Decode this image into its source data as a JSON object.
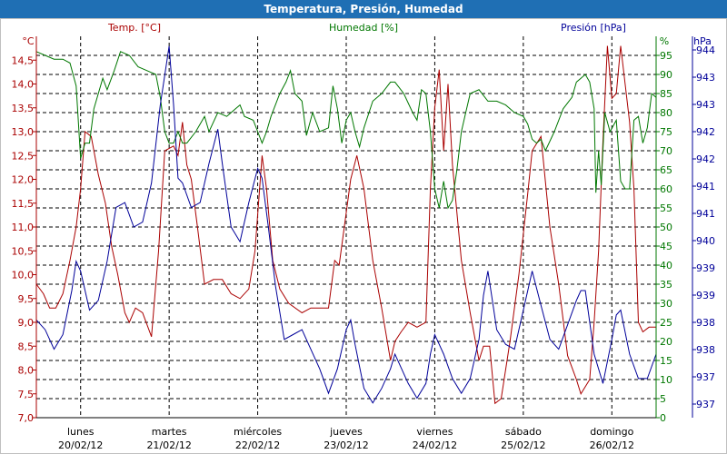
{
  "window": {
    "title": "Temperatura, Presión, Humedad"
  },
  "chart_data": {
    "type": "line",
    "title": "Temperatura, Presión, Humedad",
    "x": {
      "labels": [
        {
          "day": "lunes",
          "date": "20/02/12"
        },
        {
          "day": "martes",
          "date": "21/02/12"
        },
        {
          "day": "miércoles",
          "date": "22/02/12"
        },
        {
          "day": "jueves",
          "date": "23/02/12"
        },
        {
          "day": "viernes",
          "date": "24/02/12"
        },
        {
          "day": "sábado",
          "date": "25/02/12"
        },
        {
          "day": "domingo",
          "date": "26/02/12"
        }
      ],
      "range": [
        0,
        7
      ]
    },
    "axes": {
      "temp": {
        "label": "Temp. [°C]",
        "unit": "°C",
        "min": 7.0,
        "max": 15.0,
        "ticks": [
          "7,0",
          "7,5",
          "8,0",
          "8,5",
          "9,0",
          "9,5",
          "10,0",
          "10,5",
          "11,0",
          "11,5",
          "12,0",
          "12,5",
          "13,0",
          "13,5",
          "14,0",
          "14,5"
        ],
        "color": "#aa0000"
      },
      "hum": {
        "label": "Humedad [%]",
        "unit": "%",
        "min": 0,
        "max": 100,
        "ticks": [
          "0",
          "5",
          "10",
          "15",
          "20",
          "25",
          "30",
          "35",
          "40",
          "45",
          "50",
          "55",
          "60",
          "65",
          "70",
          "75",
          "80",
          "85",
          "90",
          "95"
        ],
        "color": "#007700"
      },
      "pres": {
        "label": "Presión [hPa]",
        "unit": "hPa",
        "min": 936.6,
        "max": 944.4,
        "ticks": [
          "937",
          "937",
          "938",
          "938",
          "939",
          "939",
          "940",
          "941",
          "941",
          "942",
          "942",
          "943",
          "943",
          "944"
        ],
        "color": "#000099"
      }
    },
    "series": [
      {
        "name": "Temp. [°C]",
        "axis": "temp",
        "color": "#aa0000",
        "points": [
          [
            0.0,
            9.8
          ],
          [
            0.08,
            9.6
          ],
          [
            0.15,
            9.3
          ],
          [
            0.22,
            9.3
          ],
          [
            0.3,
            9.6
          ],
          [
            0.38,
            10.3
          ],
          [
            0.45,
            11.0
          ],
          [
            0.5,
            11.8
          ],
          [
            0.55,
            13.0
          ],
          [
            0.62,
            12.9
          ],
          [
            0.7,
            12.1
          ],
          [
            0.78,
            11.5
          ],
          [
            0.85,
            10.6
          ],
          [
            0.92,
            10.0
          ],
          [
            1.0,
            9.2
          ],
          [
            1.05,
            9.0
          ],
          [
            1.12,
            9.3
          ],
          [
            1.2,
            9.2
          ],
          [
            1.3,
            8.7
          ],
          [
            1.38,
            10.5
          ],
          [
            1.45,
            12.6
          ],
          [
            1.55,
            12.7
          ],
          [
            1.6,
            12.5
          ],
          [
            1.65,
            13.2
          ],
          [
            1.7,
            12.3
          ],
          [
            1.75,
            12.0
          ],
          [
            1.82,
            11.0
          ],
          [
            1.9,
            9.8
          ],
          [
            2.0,
            9.9
          ],
          [
            2.1,
            9.9
          ],
          [
            2.2,
            9.6
          ],
          [
            2.3,
            9.5
          ],
          [
            2.4,
            9.7
          ],
          [
            2.47,
            10.5
          ],
          [
            2.55,
            12.5
          ],
          [
            2.6,
            11.8
          ],
          [
            2.67,
            10.3
          ],
          [
            2.75,
            9.7
          ],
          [
            2.85,
            9.4
          ],
          [
            3.0,
            9.2
          ],
          [
            3.1,
            9.3
          ],
          [
            3.2,
            9.3
          ],
          [
            3.3,
            9.3
          ],
          [
            3.37,
            10.3
          ],
          [
            3.42,
            10.2
          ],
          [
            3.5,
            11.3
          ],
          [
            3.55,
            12.0
          ],
          [
            3.62,
            12.5
          ],
          [
            3.7,
            11.8
          ],
          [
            3.8,
            10.3
          ],
          [
            3.9,
            9.3
          ],
          [
            4.0,
            8.2
          ],
          [
            4.05,
            8.6
          ],
          [
            4.12,
            8.8
          ],
          [
            4.2,
            9.0
          ],
          [
            4.3,
            8.9
          ],
          [
            4.4,
            9.0
          ],
          [
            4.45,
            11.8
          ],
          [
            4.5,
            13.5
          ],
          [
            4.55,
            14.3
          ],
          [
            4.6,
            12.6
          ],
          [
            4.65,
            14.0
          ],
          [
            4.7,
            12.3
          ],
          [
            4.8,
            10.3
          ],
          [
            4.9,
            9.2
          ],
          [
            5.0,
            8.2
          ],
          [
            5.05,
            8.5
          ],
          [
            5.12,
            8.5
          ],
          [
            5.18,
            7.3
          ],
          [
            5.25,
            7.4
          ],
          [
            5.35,
            8.6
          ],
          [
            5.45,
            10.0
          ],
          [
            5.55,
            11.7
          ],
          [
            5.6,
            12.6
          ],
          [
            5.7,
            12.9
          ],
          [
            5.8,
            11.0
          ],
          [
            5.9,
            9.8
          ],
          [
            6.0,
            8.3
          ],
          [
            6.1,
            7.8
          ],
          [
            6.15,
            7.5
          ],
          [
            6.25,
            7.8
          ],
          [
            6.3,
            9.0
          ],
          [
            6.35,
            10.5
          ],
          [
            6.4,
            12.8
          ],
          [
            6.45,
            14.8
          ],
          [
            6.5,
            13.7
          ],
          [
            6.55,
            13.8
          ],
          [
            6.6,
            14.8
          ],
          [
            6.65,
            14.0
          ],
          [
            6.7,
            13.2
          ],
          [
            6.75,
            11.8
          ],
          [
            6.8,
            9.0
          ],
          [
            6.85,
            8.8
          ],
          [
            6.92,
            8.9
          ],
          [
            7.0,
            8.9
          ]
        ]
      },
      {
        "name": "Humedad [%]",
        "axis": "hum",
        "color": "#007700",
        "points": [
          [
            0.0,
            96
          ],
          [
            0.1,
            95
          ],
          [
            0.2,
            94
          ],
          [
            0.3,
            94
          ],
          [
            0.38,
            93
          ],
          [
            0.45,
            87
          ],
          [
            0.5,
            68
          ],
          [
            0.55,
            72
          ],
          [
            0.6,
            72
          ],
          [
            0.65,
            81
          ],
          [
            0.7,
            85
          ],
          [
            0.75,
            89
          ],
          [
            0.8,
            86
          ],
          [
            0.88,
            91
          ],
          [
            0.95,
            96
          ],
          [
            1.05,
            95
          ],
          [
            1.15,
            92
          ],
          [
            1.25,
            91
          ],
          [
            1.35,
            90
          ],
          [
            1.4,
            84
          ],
          [
            1.45,
            75
          ],
          [
            1.5,
            72
          ],
          [
            1.55,
            72
          ],
          [
            1.6,
            75
          ],
          [
            1.65,
            72
          ],
          [
            1.7,
            72
          ],
          [
            1.8,
            75
          ],
          [
            1.9,
            79
          ],
          [
            1.95,
            75
          ],
          [
            2.05,
            80
          ],
          [
            2.15,
            79
          ],
          [
            2.25,
            81
          ],
          [
            2.3,
            82
          ],
          [
            2.35,
            79
          ],
          [
            2.45,
            78
          ],
          [
            2.5,
            75
          ],
          [
            2.55,
            72
          ],
          [
            2.6,
            75
          ],
          [
            2.65,
            79
          ],
          [
            2.75,
            85
          ],
          [
            2.82,
            88
          ],
          [
            2.87,
            91
          ],
          [
            2.92,
            85
          ],
          [
            3.0,
            83
          ],
          [
            3.05,
            74
          ],
          [
            3.12,
            80
          ],
          [
            3.2,
            75
          ],
          [
            3.3,
            76
          ],
          [
            3.35,
            87
          ],
          [
            3.4,
            81
          ],
          [
            3.45,
            72
          ],
          [
            3.5,
            78
          ],
          [
            3.55,
            80
          ],
          [
            3.6,
            75
          ],
          [
            3.65,
            71
          ],
          [
            3.7,
            76
          ],
          [
            3.8,
            83
          ],
          [
            3.9,
            85
          ],
          [
            4.0,
            88
          ],
          [
            4.05,
            88
          ],
          [
            4.15,
            85
          ],
          [
            4.25,
            80
          ],
          [
            4.3,
            78
          ],
          [
            4.35,
            86
          ],
          [
            4.4,
            85
          ],
          [
            4.45,
            75
          ],
          [
            4.5,
            60
          ],
          [
            4.55,
            55
          ],
          [
            4.6,
            62
          ],
          [
            4.65,
            55
          ],
          [
            4.7,
            57
          ],
          [
            4.75,
            65
          ],
          [
            4.8,
            75
          ],
          [
            4.85,
            80
          ],
          [
            4.9,
            85
          ],
          [
            5.0,
            86
          ],
          [
            5.1,
            83
          ],
          [
            5.2,
            83
          ],
          [
            5.3,
            82
          ],
          [
            5.4,
            80
          ],
          [
            5.5,
            79
          ],
          [
            5.55,
            77
          ],
          [
            5.6,
            73
          ],
          [
            5.65,
            72
          ],
          [
            5.7,
            73
          ],
          [
            5.75,
            70
          ],
          [
            5.85,
            75
          ],
          [
            5.95,
            81
          ],
          [
            6.05,
            84
          ],
          [
            6.1,
            88
          ],
          [
            6.15,
            89
          ],
          [
            6.2,
            90
          ],
          [
            6.25,
            88
          ],
          [
            6.3,
            81
          ],
          [
            6.32,
            59
          ],
          [
            6.35,
            70
          ],
          [
            6.38,
            61
          ],
          [
            6.42,
            80
          ],
          [
            6.48,
            75
          ],
          [
            6.55,
            78
          ],
          [
            6.6,
            62
          ],
          [
            6.65,
            60
          ],
          [
            6.7,
            60
          ],
          [
            6.75,
            78
          ],
          [
            6.8,
            79
          ],
          [
            6.85,
            72
          ],
          [
            6.9,
            76
          ],
          [
            6.95,
            85
          ],
          [
            7.0,
            84
          ]
        ]
      },
      {
        "name": "Presión [hPa]",
        "axis": "pres",
        "color": "#000099",
        "points": [
          [
            0.0,
            938.6
          ],
          [
            0.1,
            938.4
          ],
          [
            0.2,
            938.0
          ],
          [
            0.3,
            938.3
          ],
          [
            0.4,
            939.2
          ],
          [
            0.45,
            939.8
          ],
          [
            0.5,
            939.6
          ],
          [
            0.6,
            938.8
          ],
          [
            0.7,
            939.0
          ],
          [
            0.8,
            939.8
          ],
          [
            0.9,
            940.9
          ],
          [
            1.0,
            941.0
          ],
          [
            1.1,
            940.5
          ],
          [
            1.2,
            940.6
          ],
          [
            1.3,
            941.4
          ],
          [
            1.4,
            943.0
          ],
          [
            1.5,
            944.2
          ],
          [
            1.55,
            943.0
          ],
          [
            1.6,
            941.5
          ],
          [
            1.65,
            941.4
          ],
          [
            1.75,
            940.9
          ],
          [
            1.85,
            941.0
          ],
          [
            1.95,
            941.8
          ],
          [
            2.05,
            942.5
          ],
          [
            2.1,
            941.8
          ],
          [
            2.2,
            940.5
          ],
          [
            2.3,
            940.2
          ],
          [
            2.4,
            941.0
          ],
          [
            2.5,
            941.7
          ],
          [
            2.55,
            941.5
          ],
          [
            2.62,
            940.5
          ],
          [
            2.7,
            939.3
          ],
          [
            2.8,
            938.2
          ],
          [
            2.9,
            938.3
          ],
          [
            3.0,
            938.4
          ],
          [
            3.1,
            938.0
          ],
          [
            3.2,
            937.6
          ],
          [
            3.3,
            937.1
          ],
          [
            3.4,
            937.6
          ],
          [
            3.5,
            938.4
          ],
          [
            3.55,
            938.6
          ],
          [
            3.6,
            938.1
          ],
          [
            3.7,
            937.2
          ],
          [
            3.8,
            936.9
          ],
          [
            3.9,
            937.2
          ],
          [
            4.0,
            937.6
          ],
          [
            4.05,
            937.9
          ],
          [
            4.1,
            937.7
          ],
          [
            4.2,
            937.3
          ],
          [
            4.3,
            937.0
          ],
          [
            4.4,
            937.3
          ],
          [
            4.45,
            937.9
          ],
          [
            4.5,
            938.3
          ],
          [
            4.55,
            938.1
          ],
          [
            4.6,
            937.9
          ],
          [
            4.7,
            937.4
          ],
          [
            4.8,
            937.1
          ],
          [
            4.9,
            937.4
          ],
          [
            5.0,
            938.2
          ],
          [
            5.05,
            939.1
          ],
          [
            5.1,
            939.6
          ],
          [
            5.15,
            939.0
          ],
          [
            5.2,
            938.4
          ],
          [
            5.3,
            938.1
          ],
          [
            5.4,
            938.0
          ],
          [
            5.5,
            938.8
          ],
          [
            5.6,
            939.6
          ],
          [
            5.7,
            938.9
          ],
          [
            5.8,
            938.2
          ],
          [
            5.9,
            938.0
          ],
          [
            6.0,
            938.5
          ],
          [
            6.1,
            939.0
          ],
          [
            6.15,
            939.2
          ],
          [
            6.2,
            939.2
          ],
          [
            6.3,
            937.9
          ],
          [
            6.4,
            937.3
          ],
          [
            6.5,
            938.2
          ],
          [
            6.55,
            938.7
          ],
          [
            6.6,
            938.8
          ],
          [
            6.7,
            937.9
          ],
          [
            6.8,
            937.4
          ],
          [
            6.9,
            937.4
          ],
          [
            7.0,
            937.9
          ]
        ]
      }
    ]
  }
}
